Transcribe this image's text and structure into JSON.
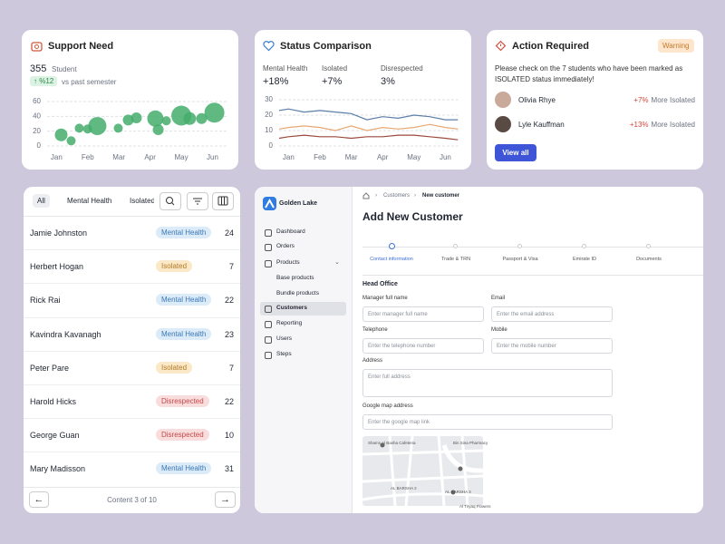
{
  "chart_data": [
    {
      "type": "scatter",
      "title": "Support Need",
      "count": "355",
      "count_label": "Student",
      "change": "↑ %12",
      "change_note": "vs past semester",
      "x": [
        0.15,
        0.47,
        0.73,
        1.0,
        1.31,
        1.98,
        2.3,
        2.56,
        3.17,
        3.26,
        3.52,
        4.0,
        4.27,
        4.65,
        5.06
      ],
      "y": [
        15,
        7,
        24,
        23,
        27,
        24,
        35,
        38,
        37,
        22,
        34,
        41,
        37,
        37,
        45
      ],
      "sizes": [
        7,
        5,
        5,
        5,
        10,
        5,
        6,
        6,
        9,
        6,
        5,
        11,
        7,
        6,
        11
      ],
      "color": "#45ad6c",
      "xlim": [
        -0.3,
        5.45
      ],
      "xticks": [
        {
          "value": 0,
          "label": "Jan"
        },
        {
          "value": 1,
          "label": "Feb"
        },
        {
          "value": 2,
          "label": "Mar"
        },
        {
          "value": 3,
          "label": "Apr"
        },
        {
          "value": 4,
          "label": "May"
        },
        {
          "value": 5,
          "label": "Jun"
        }
      ],
      "ylim": [
        0,
        60
      ],
      "yticks": [
        0,
        20,
        40,
        60
      ],
      "grid": true
    },
    {
      "type": "line",
      "title": "Status Comparison",
      "summary": [
        "+18%",
        "+7%",
        "3%"
      ],
      "x": [
        -0.3,
        0,
        0.5,
        1,
        1.5,
        2,
        2.5,
        3,
        3.5,
        4,
        4.5,
        5,
        5.4
      ],
      "series": [
        {
          "name": "Mental Health",
          "color": "#5b7fa8",
          "values": [
            23,
            24,
            22,
            23,
            22,
            21,
            17,
            19,
            18,
            20,
            19,
            17,
            17
          ]
        },
        {
          "name": "Isolated",
          "color": "#e8a872",
          "values": [
            11,
            12,
            13,
            12,
            10,
            13,
            10,
            12,
            11,
            12,
            14,
            12,
            11
          ]
        },
        {
          "name": "Disrespected",
          "color": "#9c4a3c",
          "values": [
            5,
            6,
            7,
            6,
            6,
            5,
            6,
            6,
            7,
            7,
            6,
            5,
            4
          ]
        }
      ],
      "xlim": [
        -0.3,
        5.45
      ],
      "xticks": [
        {
          "value": 0,
          "label": "Jan"
        },
        {
          "value": 1,
          "label": "Feb"
        },
        {
          "value": 2,
          "label": "Mar"
        },
        {
          "value": 3,
          "label": "Apr"
        },
        {
          "value": 4,
          "label": "May"
        },
        {
          "value": 5,
          "label": "Jun"
        }
      ],
      "ylim": [
        0,
        30
      ],
      "yticks": [
        0,
        10,
        20,
        30
      ],
      "grid": true
    }
  ],
  "action": {
    "title": "Action Required",
    "badge": "Warning",
    "message": "Please check on the 7 students who have been marked as ISOLATED status immediately!",
    "people": [
      {
        "name": "Olivia Rhye",
        "change": "+7%",
        "status": "More Isolated"
      },
      {
        "name": "Lyle Kauffman",
        "change": "+13%",
        "status": "More Isolated"
      }
    ],
    "button": "View all"
  },
  "students": {
    "tabs": [
      "All",
      "Mental Health",
      "Isolated"
    ],
    "rows": [
      {
        "name": "Jamie Johnston",
        "tag": "Mental Health",
        "count": 24
      },
      {
        "name": "Herbert Hogan",
        "tag": "Isolated",
        "count": 7
      },
      {
        "name": "Rick Rai",
        "tag": "Mental Health",
        "count": 22
      },
      {
        "name": "Kavindra Kavanagh",
        "tag": "Mental Health",
        "count": 23
      },
      {
        "name": "Peter Pare",
        "tag": "Isolated",
        "count": 7
      },
      {
        "name": "Harold Hicks",
        "tag": "Disrespected",
        "count": 22
      },
      {
        "name": "George Guan",
        "tag": "Disrespected",
        "count": 10
      },
      {
        "name": "Mary Madisson",
        "tag": "Mental Health",
        "count": 31
      }
    ],
    "footer": "Content 3 of 10"
  },
  "customer": {
    "brand": "Golden Lake",
    "nav": [
      "Dashboard",
      "Orders",
      "Products",
      "Base products",
      "Bundle products",
      "Customers",
      "Reporting",
      "Users",
      "Steps"
    ],
    "breadcrumb": [
      "Customers",
      "New customer"
    ],
    "title": "Add New Customer",
    "steps": [
      "Contact information",
      "Trade & TRN",
      "Passport & Visa",
      "Emirate ID",
      "Documents"
    ],
    "section": "Head Office",
    "fields": [
      {
        "label": "Manager full name",
        "placeholder": "Enter manager full name"
      },
      {
        "label": "Email",
        "placeholder": "Enter the email address"
      },
      {
        "label": "Telephone",
        "placeholder": "Enter the telephone number"
      },
      {
        "label": "Mobile",
        "placeholder": "Enter the mobile number"
      },
      {
        "label": "Address",
        "placeholder": "Enter full address"
      },
      {
        "label": "Google map address",
        "placeholder": "Enter the google map link"
      }
    ],
    "map_labels": [
      "Shams Al Basha Cafeteria",
      "Bin Sina Pharmacy",
      "AL BARSHA 2",
      "AL BARSHA 3",
      "Al Tiryaq Flowers"
    ]
  }
}
